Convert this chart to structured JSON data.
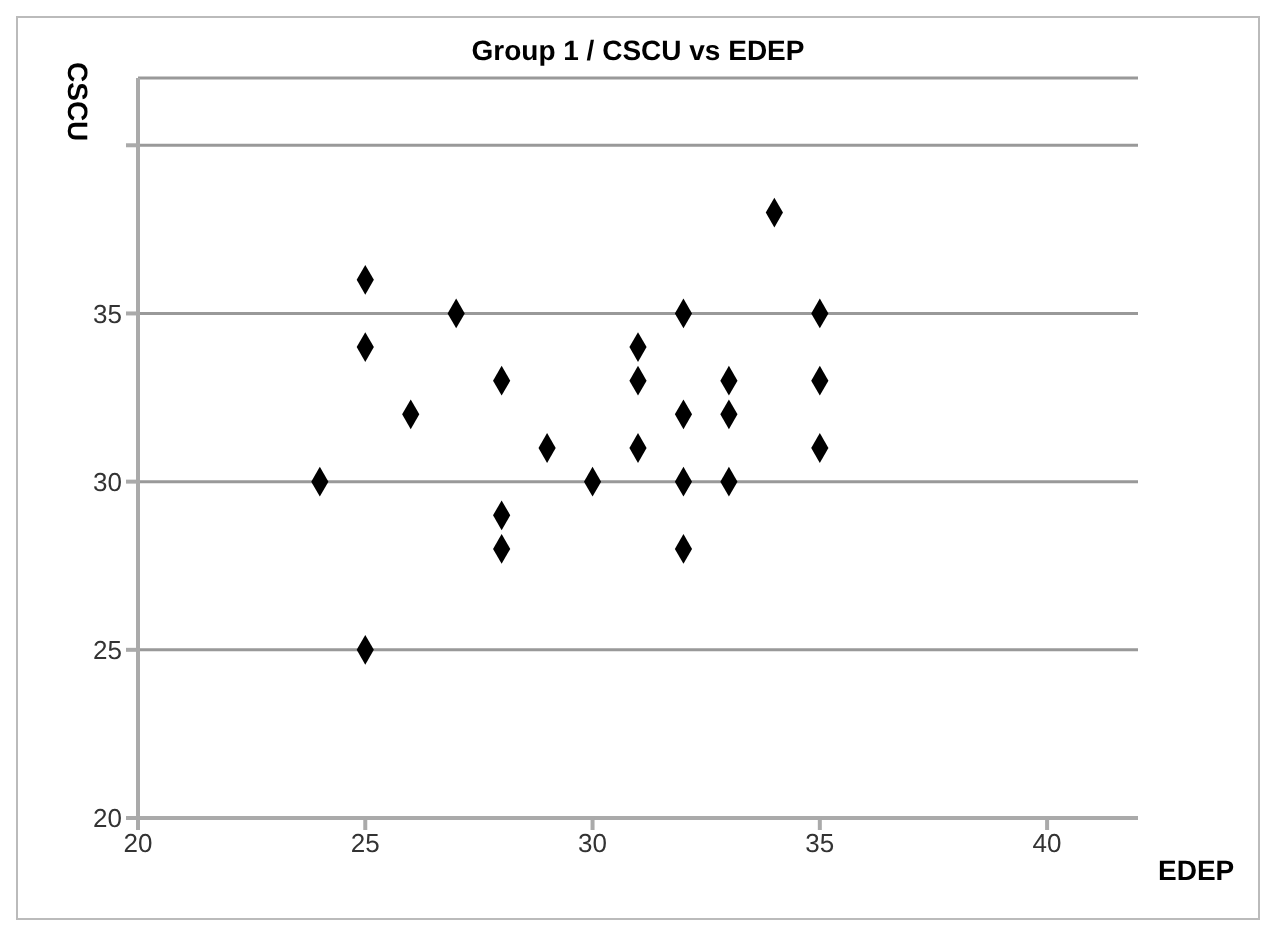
{
  "chart_data": {
    "type": "scatter",
    "title": "Group 1 / CSCU vs EDEP",
    "xlabel": "EDEP",
    "ylabel": "CSCU",
    "x": [
      24,
      25,
      25,
      25,
      26,
      27,
      28,
      28,
      28,
      29,
      30,
      31,
      31,
      31,
      32,
      32,
      32,
      32,
      33,
      33,
      33,
      34,
      35,
      35,
      35
    ],
    "series": [
      {
        "color": "#000000",
        "values": [
          30,
          36,
          34,
          25,
          32,
          35,
          33,
          29,
          28,
          31,
          30,
          34,
          33,
          31,
          35,
          32,
          30,
          28,
          33,
          32,
          30,
          38,
          35,
          33,
          31
        ]
      }
    ],
    "xlim": [
      20,
      42
    ],
    "xticks": [
      20,
      25,
      30,
      35,
      40
    ],
    "ylim": [
      20,
      42
    ],
    "yticks": [
      20,
      25,
      30,
      35,
      {
        "value": 40,
        "label": null
      }
    ],
    "grid": "y",
    "marker": "diamond"
  }
}
